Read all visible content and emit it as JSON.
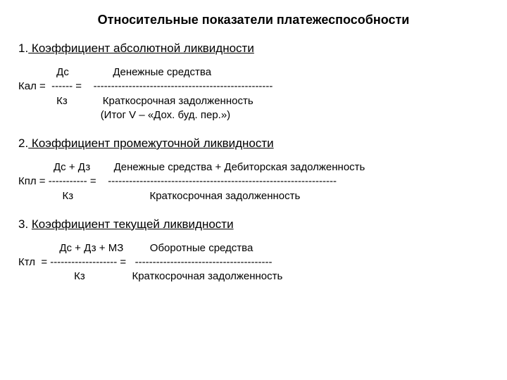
{
  "title": "Относительные показатели платежеспособности",
  "sections": [
    {
      "num": "1.",
      "heading": " Коэффициент абсолютной ликвидности",
      "lines": [
        "             Дс               Денежные средства",
        "Кал =  ------ =    ---------------------------------------------------",
        "             Кз            Краткосрочная задолженность",
        "                            (Итог V – «Дох. буд. пер.»)"
      ]
    },
    {
      "num": "2.",
      "heading": " Коэффициент промежуточной  ликвидности",
      "lines": [
        "            Дс + Дз        Денежные средства + Дебиторская задолженность",
        "Кпл = ----------- =    -----------------------------------------------------------------",
        "               Кз                          Краткосрочная задолженность"
      ]
    },
    {
      "num": "3.  ",
      "heading": " Коэффициент текущей  ликвидности",
      "lines": [
        "              Дс + Дз + МЗ         Оборотные средства",
        "Ктл  = ------------------- =   ---------------------------------------",
        "                   Кз                Краткосрочная задолженность"
      ]
    }
  ]
}
